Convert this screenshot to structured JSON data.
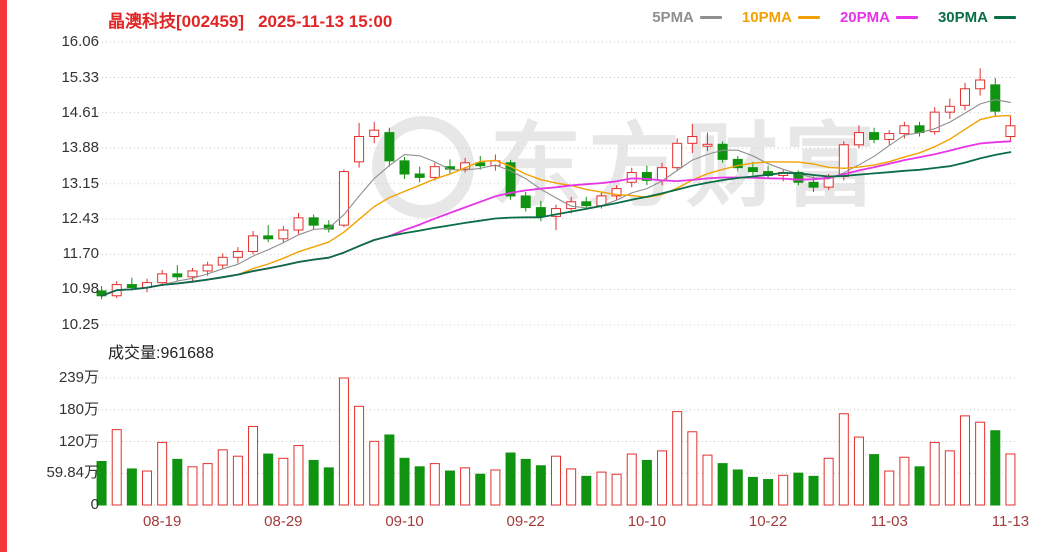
{
  "header": {
    "stock_name": "晶澳科技",
    "stock_code": "[002459]",
    "datetime": "2025-11-13 15:00"
  },
  "legend": [
    {
      "label": "5PMA",
      "color": "#8f8f8f"
    },
    {
      "label": "10PMA",
      "color": "#f2a200"
    },
    {
      "label": "20PMA",
      "color": "#e833e8"
    },
    {
      "label": "30PMA",
      "color": "#0a6e46"
    }
  ],
  "volume_header": {
    "label": "成交量:",
    "value": "961688"
  },
  "watermark": {
    "text": "东方财富"
  },
  "colors": {
    "up": "#e3302d",
    "down": "#109310",
    "grid": "#c9c9c9",
    "axis_text": "#333333",
    "date_text": "#a23b3b",
    "title": "#e02626",
    "left_strip": "#f23a3a",
    "background": "#ffffff"
  },
  "chart_data": {
    "type": "candlestick_with_volume",
    "title": "晶澳科技[002459] 2025-11-13 15:00",
    "legend_position": "top-right",
    "grid": "horizontal-dotted",
    "price_axis": {
      "min": 10.25,
      "max": 16.06,
      "ticks": [
        {
          "label": "16.06",
          "value": 16.06
        },
        {
          "label": "15.33",
          "value": 15.33
        },
        {
          "label": "14.61",
          "value": 14.61
        },
        {
          "label": "13.88",
          "value": 13.88
        },
        {
          "label": "13.15",
          "value": 13.15
        },
        {
          "label": "12.43",
          "value": 12.43
        },
        {
          "label": "11.70",
          "value": 11.7
        },
        {
          "label": "10.98",
          "value": 10.98
        },
        {
          "label": "10.25",
          "value": 10.25
        }
      ]
    },
    "volume_axis": {
      "max_wan": 239.36,
      "ticks": [
        {
          "label": "239万",
          "value": 239.36
        },
        {
          "label": "180万",
          "value": 179.52
        },
        {
          "label": "120万",
          "value": 119.68
        },
        {
          "label": "59.84万",
          "value": 59.84
        },
        {
          "label": "0",
          "value": 0
        }
      ],
      "current_volume": "961688"
    },
    "x_axis": {
      "labels": [
        {
          "text": "08-19",
          "index": 4
        },
        {
          "text": "08-29",
          "index": 12
        },
        {
          "text": "09-10",
          "index": 20
        },
        {
          "text": "09-22",
          "index": 28
        },
        {
          "text": "10-10",
          "index": 36
        },
        {
          "text": "10-22",
          "index": 44
        },
        {
          "text": "11-03",
          "index": 52
        },
        {
          "text": "11-13",
          "index": 60
        }
      ]
    },
    "moving_averages": [
      {
        "name": "5PMA",
        "window": 5,
        "color": "#8f8f8f"
      },
      {
        "name": "10PMA",
        "window": 10,
        "color": "#f2a200"
      },
      {
        "name": "20PMA",
        "window": 20,
        "color": "#e833e8"
      },
      {
        "name": "30PMA",
        "window": 30,
        "color": "#0a6e46"
      }
    ],
    "candles": {
      "fields": [
        "date",
        "open",
        "high",
        "low",
        "close",
        "volume_wan"
      ],
      "rows": [
        [
          "08-13",
          10.95,
          11.05,
          10.78,
          10.85,
          82
        ],
        [
          "08-14",
          10.85,
          11.15,
          10.8,
          11.08,
          142
        ],
        [
          "08-15",
          11.08,
          11.22,
          10.96,
          11.02,
          68
        ],
        [
          "08-18",
          11.02,
          11.2,
          10.92,
          11.12,
          64
        ],
        [
          "08-19",
          11.12,
          11.38,
          11.05,
          11.3,
          118
        ],
        [
          "08-20",
          11.3,
          11.48,
          11.16,
          11.24,
          86
        ],
        [
          "08-21",
          11.24,
          11.42,
          11.12,
          11.36,
          72
        ],
        [
          "08-22",
          11.36,
          11.55,
          11.26,
          11.48,
          78
        ],
        [
          "08-25",
          11.48,
          11.72,
          11.4,
          11.64,
          104
        ],
        [
          "08-26",
          11.64,
          11.85,
          11.52,
          11.76,
          92
        ],
        [
          "08-27",
          11.76,
          12.18,
          11.7,
          12.08,
          148
        ],
        [
          "08-28",
          12.08,
          12.3,
          11.95,
          12.02,
          96
        ],
        [
          "08-29",
          12.02,
          12.28,
          11.94,
          12.2,
          88
        ],
        [
          "09-01",
          12.2,
          12.55,
          12.12,
          12.45,
          112
        ],
        [
          "09-02",
          12.45,
          12.52,
          12.22,
          12.3,
          84
        ],
        [
          "09-03",
          12.3,
          12.4,
          12.15,
          12.22,
          70
        ],
        [
          "09-04",
          12.3,
          13.44,
          12.26,
          13.4,
          239.36
        ],
        [
          "09-05",
          13.6,
          14.4,
          13.48,
          14.12,
          186
        ],
        [
          "09-08",
          14.12,
          14.42,
          13.98,
          14.25,
          120
        ],
        [
          "09-09",
          14.2,
          14.3,
          13.5,
          13.62,
          132
        ],
        [
          "09-10",
          13.62,
          13.7,
          13.25,
          13.35,
          88
        ],
        [
          "09-11",
          13.35,
          13.5,
          13.18,
          13.28,
          72
        ],
        [
          "09-12",
          13.28,
          13.58,
          13.22,
          13.5,
          78
        ],
        [
          "09-15",
          13.5,
          13.65,
          13.35,
          13.45,
          64
        ],
        [
          "09-16",
          13.45,
          13.68,
          13.38,
          13.58,
          70
        ],
        [
          "09-17",
          13.58,
          13.72,
          13.44,
          13.52,
          58
        ],
        [
          "09-18",
          13.52,
          13.75,
          13.42,
          13.62,
          66
        ],
        [
          "09-19",
          13.58,
          13.64,
          12.82,
          12.9,
          98
        ],
        [
          "09-22",
          12.9,
          12.98,
          12.58,
          12.66,
          86
        ],
        [
          "09-23",
          12.66,
          12.8,
          12.38,
          12.48,
          74
        ],
        [
          "09-24",
          12.48,
          12.72,
          12.2,
          12.64,
          92
        ],
        [
          "09-25",
          12.64,
          12.88,
          12.54,
          12.78,
          68
        ],
        [
          "09-26",
          12.78,
          12.88,
          12.62,
          12.7,
          54
        ],
        [
          "09-29",
          12.7,
          12.98,
          12.64,
          12.9,
          62
        ],
        [
          "09-30",
          12.9,
          13.12,
          12.82,
          13.05,
          58
        ],
        [
          "10-09",
          13.18,
          13.48,
          13.08,
          13.38,
          96
        ],
        [
          "10-10",
          13.38,
          13.52,
          13.12,
          13.22,
          84
        ],
        [
          "10-13",
          13.22,
          13.58,
          13.12,
          13.48,
          102
        ],
        [
          "10-14",
          13.48,
          14.08,
          13.42,
          13.98,
          176
        ],
        [
          "10-15",
          13.98,
          14.38,
          13.78,
          14.12,
          138
        ],
        [
          "10-16",
          13.92,
          14.2,
          13.82,
          13.96,
          94
        ],
        [
          "10-17",
          13.96,
          14.02,
          13.58,
          13.65,
          78
        ],
        [
          "10-20",
          13.65,
          13.72,
          13.4,
          13.48,
          66
        ],
        [
          "10-21",
          13.48,
          13.6,
          13.32,
          13.4,
          52
        ],
        [
          "10-22",
          13.4,
          13.52,
          13.25,
          13.32,
          48
        ],
        [
          "10-23",
          13.32,
          13.45,
          13.2,
          13.38,
          56
        ],
        [
          "10-24",
          13.38,
          13.42,
          13.12,
          13.18,
          60
        ],
        [
          "10-27",
          13.18,
          13.3,
          12.98,
          13.08,
          54
        ],
        [
          "10-28",
          13.08,
          13.35,
          13.02,
          13.28,
          88
        ],
        [
          "10-29",
          13.3,
          14.02,
          13.22,
          13.95,
          172
        ],
        [
          "10-30",
          13.95,
          14.35,
          13.88,
          14.2,
          128
        ],
        [
          "10-31",
          14.2,
          14.3,
          13.98,
          14.06,
          95
        ],
        [
          "11-03",
          14.06,
          14.25,
          13.95,
          14.18,
          64
        ],
        [
          "11-04",
          14.18,
          14.42,
          14.08,
          14.34,
          90
        ],
        [
          "11-05",
          14.34,
          14.42,
          14.12,
          14.2,
          72
        ],
        [
          "11-06",
          14.22,
          14.72,
          14.16,
          14.62,
          118
        ],
        [
          "11-07",
          14.62,
          14.9,
          14.48,
          14.74,
          102
        ],
        [
          "11-10",
          14.76,
          15.22,
          14.66,
          15.1,
          168
        ],
        [
          "11-11",
          15.1,
          15.52,
          14.96,
          15.28,
          156
        ],
        [
          "11-12",
          15.18,
          15.32,
          14.52,
          14.64,
          140
        ],
        [
          "11-13",
          14.12,
          14.56,
          14.02,
          14.34,
          96.17
        ]
      ]
    }
  }
}
